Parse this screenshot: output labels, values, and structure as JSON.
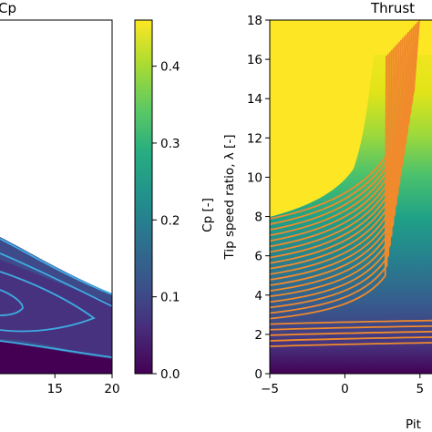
{
  "chart_data": [
    {
      "type": "heatmap",
      "title": "Cp",
      "xlabel": "",
      "ylabel": "",
      "x_ticks": [
        15,
        20
      ],
      "x_tick_labels": [
        "15",
        "20"
      ],
      "xlim_visible": [
        10.2,
        20
      ],
      "ylim": [
        0,
        18
      ],
      "contour_color": "#3fa9e0",
      "colormap": "viridis"
    },
    {
      "type": "colorbar",
      "label": "Cp [-]",
      "range": [
        0.0,
        0.46
      ],
      "ticks": [
        0.0,
        0.1,
        0.2,
        0.3,
        0.4
      ],
      "tick_labels": [
        "0.0",
        "0.1",
        "0.2",
        "0.3",
        "0.4"
      ],
      "colormap": "viridis"
    },
    {
      "type": "heatmap",
      "title": "Thrust",
      "xlabel": "Pit",
      "ylabel": "Tip speed ratio, λ [-]",
      "x_ticks": [
        -5,
        0,
        5
      ],
      "x_tick_labels": [
        "−5",
        "0",
        "5"
      ],
      "xlim_visible": [
        -5,
        5.8
      ],
      "y_ticks": [
        0,
        2,
        4,
        6,
        8,
        10,
        12,
        14,
        16,
        18
      ],
      "y_tick_labels": [
        "0",
        "2",
        "4",
        "6",
        "8",
        "10",
        "12",
        "14",
        "16",
        "18"
      ],
      "ylim": [
        0,
        18
      ],
      "contour_color": "#f08a2c",
      "colormap": "viridis"
    }
  ]
}
